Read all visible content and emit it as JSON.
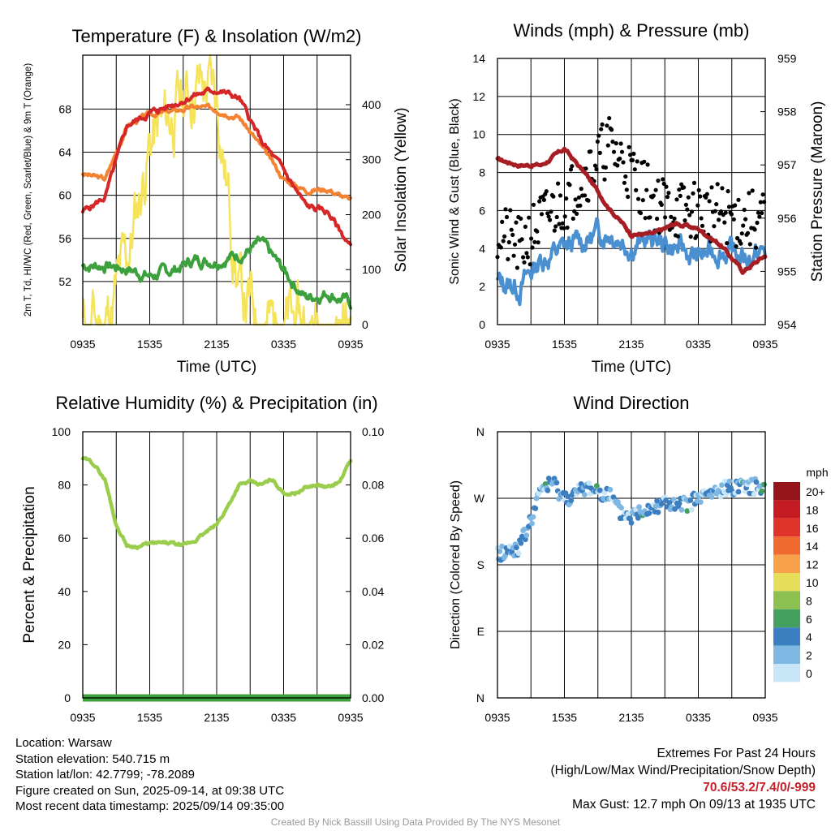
{
  "chart_data": [
    {
      "type": "line",
      "title": "Temperature (F) & Insolation (W/m2)",
      "xlabel": "Time (UTC)",
      "ylabel": "2m T, Td, HI/WC (Red, Green, Scarlet/Blue) & 9m T (Orange)",
      "y2label": "Solar Insolation (Yellow)",
      "x_ticks": [
        "0935",
        "1535",
        "2135",
        "0335",
        "0935"
      ],
      "ylim": [
        48,
        73
      ],
      "y_ticks": [
        52,
        56,
        60,
        64,
        68
      ],
      "y2lim": [
        0,
        490
      ],
      "y2_ticks": [
        0,
        100,
        200,
        300,
        400
      ],
      "grid": true,
      "x_hours": [
        0,
        2,
        4,
        6,
        8,
        10,
        12,
        14,
        16,
        18,
        20,
        22,
        24
      ],
      "series": [
        {
          "name": "2m T",
          "color": "#d62728",
          "axis": "left",
          "values": [
            58.5,
            59.8,
            66.5,
            67.6,
            68.4,
            69.3,
            69.8,
            69.0,
            65.0,
            62.3,
            59.0,
            58.4,
            55.2
          ]
        },
        {
          "name": "9m T",
          "color": "#f58231",
          "axis": "left",
          "values": [
            62.0,
            61.5,
            66.5,
            67.5,
            67.8,
            68.2,
            68.0,
            67.3,
            64.5,
            61.5,
            60.5,
            60.6,
            59.5
          ]
        },
        {
          "name": "Td",
          "color": "#3ca03c",
          "axis": "left",
          "values": [
            53.5,
            53.5,
            53.2,
            52.5,
            53.0,
            54.0,
            54.0,
            54.5,
            55.5,
            53.0,
            50.5,
            51.0,
            50.0
          ]
        },
        {
          "name": "Solar Insolation",
          "color": "#f5e35a",
          "axis": "right",
          "values": [
            0,
            0,
            120,
            330,
            380,
            440,
            420,
            60,
            0,
            0,
            0,
            0,
            0
          ]
        }
      ]
    },
    {
      "type": "line",
      "title": "Winds (mph) & Pressure (mb)",
      "xlabel": "Time (UTC)",
      "ylabel": "Sonic Wind & Gust (Blue, Black)",
      "y2label": "Station Pressure (Maroon)",
      "x_ticks": [
        "0935",
        "1535",
        "2135",
        "0335",
        "0935"
      ],
      "ylim": [
        0,
        14
      ],
      "y_ticks": [
        0,
        2,
        4,
        6,
        8,
        10,
        12,
        14
      ],
      "y2lim": [
        954,
        959
      ],
      "y2_ticks": [
        954,
        955,
        956,
        957,
        958,
        959
      ],
      "grid": true,
      "x_hours": [
        0,
        2,
        4,
        6,
        8,
        10,
        12,
        14,
        16,
        18,
        20,
        22,
        24
      ],
      "series": [
        {
          "name": "Sonic Wind",
          "color": "#4a90d0",
          "axis": "left",
          "values": [
            2.2,
            2.0,
            3.5,
            4.0,
            4.5,
            5.0,
            4.2,
            4.5,
            4.0,
            3.5,
            4.0,
            3.5,
            3.8
          ]
        },
        {
          "name": "Gust",
          "color": "#000000",
          "axis": "left",
          "values": [
            5.0,
            4.0,
            5.5,
            6.5,
            8.0,
            9.5,
            8.0,
            6.5,
            6.0,
            6.0,
            5.8,
            5.5,
            5.5
          ]
        },
        {
          "name": "Station Pressure",
          "color": "#a61d24",
          "axis": "right",
          "values": [
            957.1,
            957.0,
            957.0,
            957.3,
            956.8,
            956.2,
            955.7,
            955.7,
            955.9,
            955.8,
            955.5,
            955.0,
            955.3
          ]
        }
      ]
    },
    {
      "type": "line",
      "title": "Relative Humidity (%) & Precipitation (in)",
      "ylabel": "Percent & Precipitation",
      "x_ticks": [
        "0935",
        "1535",
        "2135",
        "0335",
        "0935"
      ],
      "ylim": [
        0,
        100
      ],
      "y_ticks": [
        0,
        20,
        40,
        60,
        80,
        100
      ],
      "y2lim": [
        0,
        0.1
      ],
      "y2_ticks": [
        "0.00",
        "0.02",
        "0.04",
        "0.06",
        "0.08",
        "0.10"
      ],
      "grid": true,
      "x_hours": [
        0,
        1,
        2,
        3,
        4,
        5,
        6,
        7,
        8,
        9,
        10,
        11,
        12,
        13,
        14,
        15,
        16,
        17,
        18,
        19,
        20,
        21,
        22,
        23,
        24
      ],
      "series": [
        {
          "name": "Relative Humidity",
          "color": "#9acd4c",
          "axis": "left",
          "values": [
            90,
            88,
            82,
            65,
            57,
            57,
            58,
            58,
            58,
            57,
            59,
            62,
            65,
            72,
            80,
            81,
            80,
            82,
            77,
            77,
            79,
            80,
            79,
            81,
            89
          ]
        },
        {
          "name": "Precipitation",
          "color": "#3ca03c",
          "axis": "right",
          "values": [
            0,
            0,
            0,
            0,
            0,
            0,
            0,
            0,
            0,
            0,
            0,
            0,
            0,
            0,
            0,
            0,
            0,
            0,
            0,
            0,
            0,
            0,
            0,
            0,
            0
          ]
        }
      ]
    },
    {
      "type": "scatter",
      "title": "Wind Direction",
      "ylabel": "Direction (Colored By Speed)",
      "x_ticks": [
        "0935",
        "1535",
        "2135",
        "0335",
        "0935"
      ],
      "y_ticks": [
        "N",
        "E",
        "S",
        "W",
        "N"
      ],
      "ylim": [
        0,
        360
      ],
      "grid": true,
      "x_hours": [
        0,
        1,
        2,
        3,
        4,
        5,
        6,
        7,
        8,
        9,
        10,
        11,
        12,
        13,
        14,
        15,
        16,
        17,
        18,
        19,
        20,
        21,
        22,
        23,
        24
      ],
      "values": [
        195,
        198,
        205,
        240,
        285,
        290,
        270,
        275,
        285,
        280,
        275,
        250,
        245,
        255,
        260,
        265,
        258,
        262,
        270,
        275,
        280,
        285,
        290,
        285,
        290
      ],
      "legend": {
        "unit": "mph",
        "labels": [
          "20+",
          "18",
          "16",
          "14",
          "12",
          "10",
          "8",
          "6",
          "4",
          "2",
          "0"
        ],
        "colors": [
          "#931519",
          "#c51b23",
          "#e0342b",
          "#ef6a2e",
          "#f7a14b",
          "#e6de5a",
          "#8cc152",
          "#44a05e",
          "#3c7fc1",
          "#7fb7e3",
          "#c8e6f7"
        ]
      }
    }
  ],
  "info": {
    "location": "Location: Warsaw",
    "elevation": "Station elevation: 540.715 m",
    "latlon": "Station lat/lon: 42.7799; -78.2089",
    "created": "Figure created on Sun, 2025-09-14, at 09:38 UTC",
    "recent": "Most recent data timestamp: 2025/09/14 09:35:00"
  },
  "extremes": {
    "title": "Extremes For Past 24 Hours",
    "subtitle": "(High/Low/Max Wind/Precipitation/Snow Depth)",
    "values": "70.6/53.2/7.4/0/-999",
    "gust": "Max Gust: 12.7 mph On 09/13 at 1935 UTC"
  },
  "credit": "Created By Nick Bassill Using Data Provided By The NYS Mesonet"
}
